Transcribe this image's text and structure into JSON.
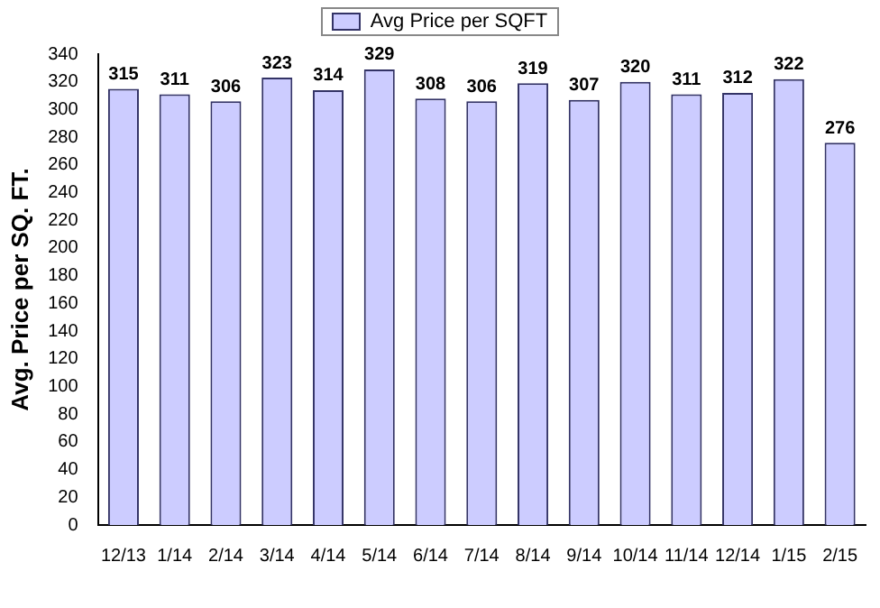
{
  "chart_data": {
    "type": "bar",
    "ylabel": "Avg. Price per SQ. FT.",
    "categories": [
      "12/13",
      "1/14",
      "2/14",
      "3/14",
      "4/14",
      "5/14",
      "6/14",
      "7/14",
      "8/14",
      "9/14",
      "10/14",
      "11/14",
      "12/14",
      "1/15",
      "2/15"
    ],
    "series": [
      {
        "name": "Avg Price per SQFT",
        "color": "#ccccff",
        "values": [
          315,
          311,
          306,
          323,
          314,
          329,
          308,
          306,
          319,
          307,
          320,
          311,
          312,
          322,
          276
        ]
      }
    ],
    "ylim": [
      0,
      340
    ],
    "yticks": [
      0,
      20,
      40,
      60,
      80,
      100,
      120,
      140,
      160,
      180,
      200,
      220,
      240,
      260,
      280,
      300,
      320,
      340
    ],
    "data_labels": true,
    "legend": "top",
    "grid": false
  }
}
